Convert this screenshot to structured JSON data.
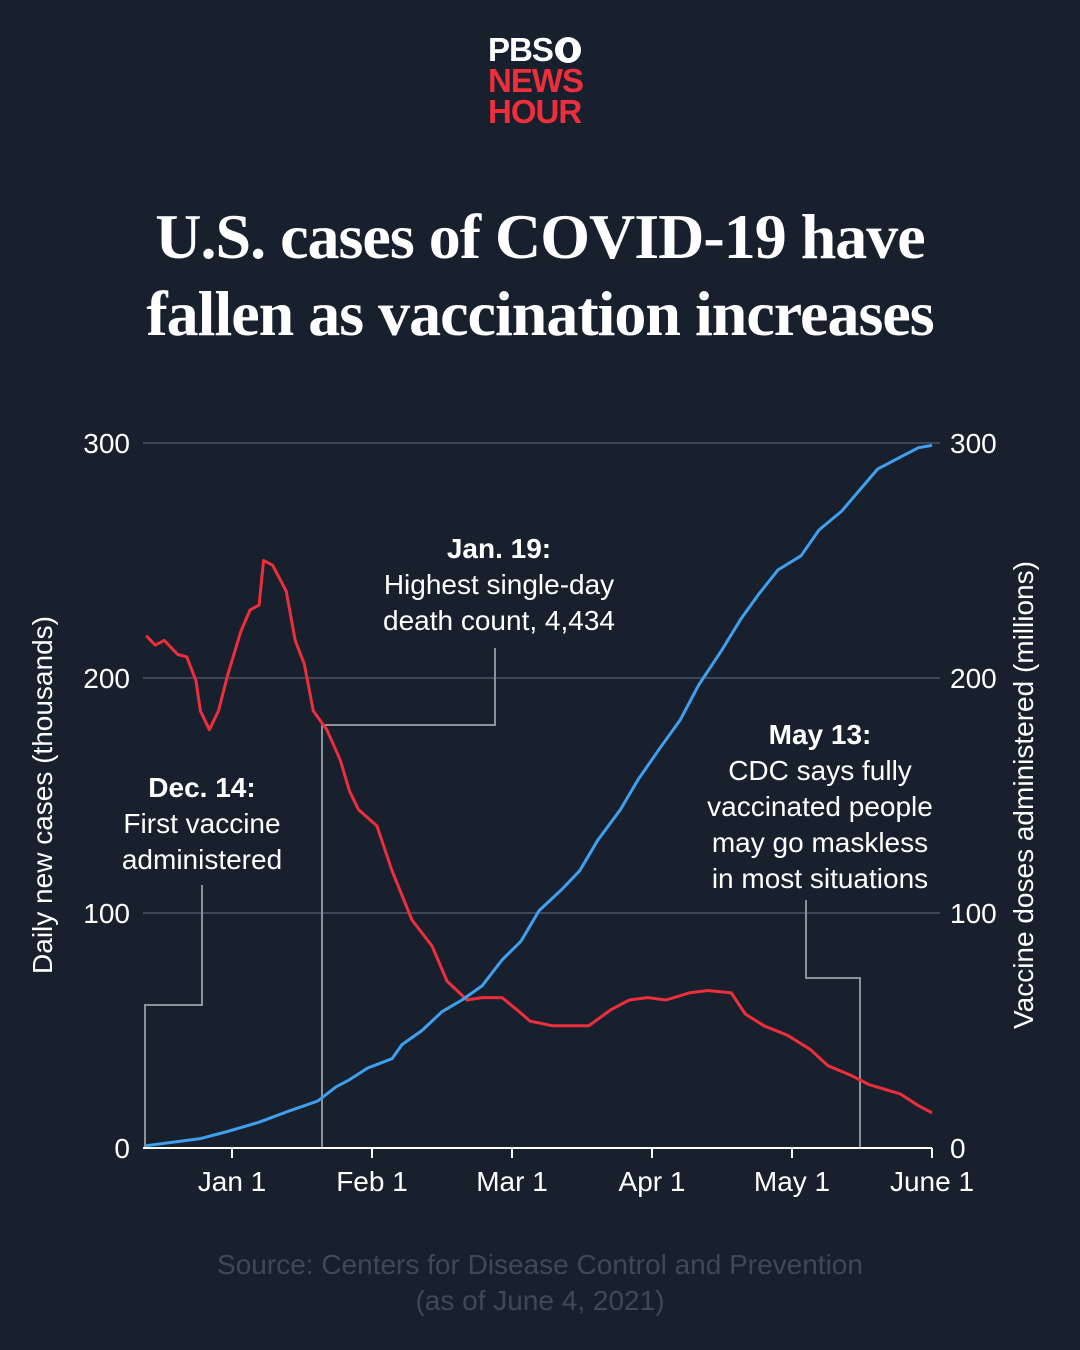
{
  "logo": {
    "line1": "PBS",
    "line2": "NEWS",
    "line3": "HOUR"
  },
  "title": {
    "line1": "U.S. cases of COVID-19 have",
    "line2": "fallen as vaccination increases"
  },
  "source": {
    "line1": "Source: Centers for Disease Control and Prevention",
    "line2": "(as of June 4, 2021)"
  },
  "colors": {
    "background": "#18202e",
    "cases": "#ee2f3b",
    "vaccines": "#3fa0f0",
    "grid": "#4a5566",
    "leader": "#8a929c"
  },
  "chart_data": {
    "type": "line",
    "title": "U.S. cases of COVID-19 have fallen as vaccination increases",
    "xlabel": "",
    "ylabel_left": "Daily new cases (thousands)",
    "ylabel_right": "Vaccine doses administered (millions)",
    "xlim": [
      "2020-12-13",
      "2021-06-01"
    ],
    "ylim": [
      0,
      300
    ],
    "y_ticks": [
      "0",
      "100",
      "200",
      "300"
    ],
    "x_ticks": [
      {
        "date": "2021-01-01",
        "label": "Jan 1"
      },
      {
        "date": "2021-02-01",
        "label": "Feb 1"
      },
      {
        "date": "2021-03-01",
        "label": "Mar 1"
      },
      {
        "date": "2021-04-01",
        "label": "Apr 1"
      },
      {
        "date": "2021-05-01",
        "label": "May 1"
      },
      {
        "date": "2021-06-01",
        "label": "June 1"
      }
    ],
    "grid": "horizontal",
    "series": [
      {
        "axis": "left",
        "color": "#ee2f3b",
        "points": [
          [
            "2020-12-13",
            218
          ],
          [
            "2020-12-15",
            214
          ],
          [
            "2020-12-17",
            216
          ],
          [
            "2020-12-20",
            210
          ],
          [
            "2020-12-22",
            209
          ],
          [
            "2020-12-24",
            199
          ],
          [
            "2020-12-25",
            186
          ],
          [
            "2020-12-27",
            178
          ],
          [
            "2020-12-29",
            186
          ],
          [
            "2020-12-31",
            201
          ],
          [
            "2021-01-03",
            220
          ],
          [
            "2021-01-05",
            229
          ],
          [
            "2021-01-07",
            231
          ],
          [
            "2021-01-08",
            250
          ],
          [
            "2021-01-10",
            248
          ],
          [
            "2021-01-13",
            237
          ],
          [
            "2021-01-15",
            216
          ],
          [
            "2021-01-17",
            206
          ],
          [
            "2021-01-19",
            186
          ],
          [
            "2021-01-22",
            178
          ],
          [
            "2021-01-25",
            165
          ],
          [
            "2021-01-27",
            152
          ],
          [
            "2021-01-29",
            144
          ],
          [
            "2021-02-02",
            137
          ],
          [
            "2021-02-05",
            118
          ],
          [
            "2021-02-09",
            97
          ],
          [
            "2021-02-13",
            86
          ],
          [
            "2021-02-16",
            71
          ],
          [
            "2021-02-20",
            63
          ],
          [
            "2021-02-23",
            64
          ],
          [
            "2021-02-27",
            64
          ],
          [
            "2021-03-02",
            59
          ],
          [
            "2021-03-05",
            54
          ],
          [
            "2021-03-10",
            52
          ],
          [
            "2021-03-18",
            52
          ],
          [
            "2021-03-23",
            59
          ],
          [
            "2021-03-27",
            63
          ],
          [
            "2021-03-31",
            64
          ],
          [
            "2021-04-04",
            63
          ],
          [
            "2021-04-09",
            66
          ],
          [
            "2021-04-13",
            67
          ],
          [
            "2021-04-18",
            66
          ],
          [
            "2021-04-21",
            57
          ],
          [
            "2021-04-25",
            52
          ],
          [
            "2021-04-30",
            48
          ],
          [
            "2021-05-05",
            42
          ],
          [
            "2021-05-09",
            35
          ],
          [
            "2021-05-14",
            31
          ],
          [
            "2021-05-18",
            27
          ],
          [
            "2021-05-25",
            23
          ],
          [
            "2021-05-29",
            18
          ],
          [
            "2021-06-01",
            15
          ]
        ]
      },
      {
        "axis": "right",
        "color": "#3fa0f0",
        "points": [
          [
            "2020-12-13",
            1
          ],
          [
            "2020-12-25",
            4
          ],
          [
            "2020-12-31",
            7
          ],
          [
            "2021-01-07",
            11
          ],
          [
            "2021-01-14",
            16
          ],
          [
            "2021-01-20",
            20
          ],
          [
            "2021-01-24",
            26
          ],
          [
            "2021-01-27",
            29
          ],
          [
            "2021-01-31",
            34
          ],
          [
            "2021-02-05",
            38
          ],
          [
            "2021-02-07",
            44
          ],
          [
            "2021-02-11",
            50
          ],
          [
            "2021-02-15",
            58
          ],
          [
            "2021-02-19",
            63
          ],
          [
            "2021-02-23",
            69
          ],
          [
            "2021-02-27",
            80
          ],
          [
            "2021-03-03",
            88
          ],
          [
            "2021-03-07",
            101
          ],
          [
            "2021-03-12",
            110
          ],
          [
            "2021-03-16",
            118
          ],
          [
            "2021-03-20",
            131
          ],
          [
            "2021-03-25",
            144
          ],
          [
            "2021-03-29",
            157
          ],
          [
            "2021-04-03",
            171
          ],
          [
            "2021-04-07",
            182
          ],
          [
            "2021-04-11",
            197
          ],
          [
            "2021-04-16",
            212
          ],
          [
            "2021-04-20",
            225
          ],
          [
            "2021-04-24",
            236
          ],
          [
            "2021-04-28",
            246
          ],
          [
            "2021-05-03",
            252
          ],
          [
            "2021-05-07",
            263
          ],
          [
            "2021-05-12",
            271
          ],
          [
            "2021-05-16",
            280
          ],
          [
            "2021-05-20",
            289
          ],
          [
            "2021-05-25",
            294
          ],
          [
            "2021-05-29",
            298
          ],
          [
            "2021-06-01",
            299
          ]
        ]
      }
    ],
    "annotations": [
      {
        "date": "2020-12-14",
        "heading": "Dec. 14:",
        "lines": [
          "First vaccine",
          "administered"
        ]
      },
      {
        "date": "2021-01-19",
        "heading": "Jan. 19:",
        "lines": [
          "Highest single-day",
          "death count, 4,434"
        ]
      },
      {
        "date": "2021-05-13",
        "heading": "May 13:",
        "lines": [
          "CDC says fully",
          "vaccinated people",
          "may go maskless",
          "in most situations"
        ]
      }
    ]
  }
}
